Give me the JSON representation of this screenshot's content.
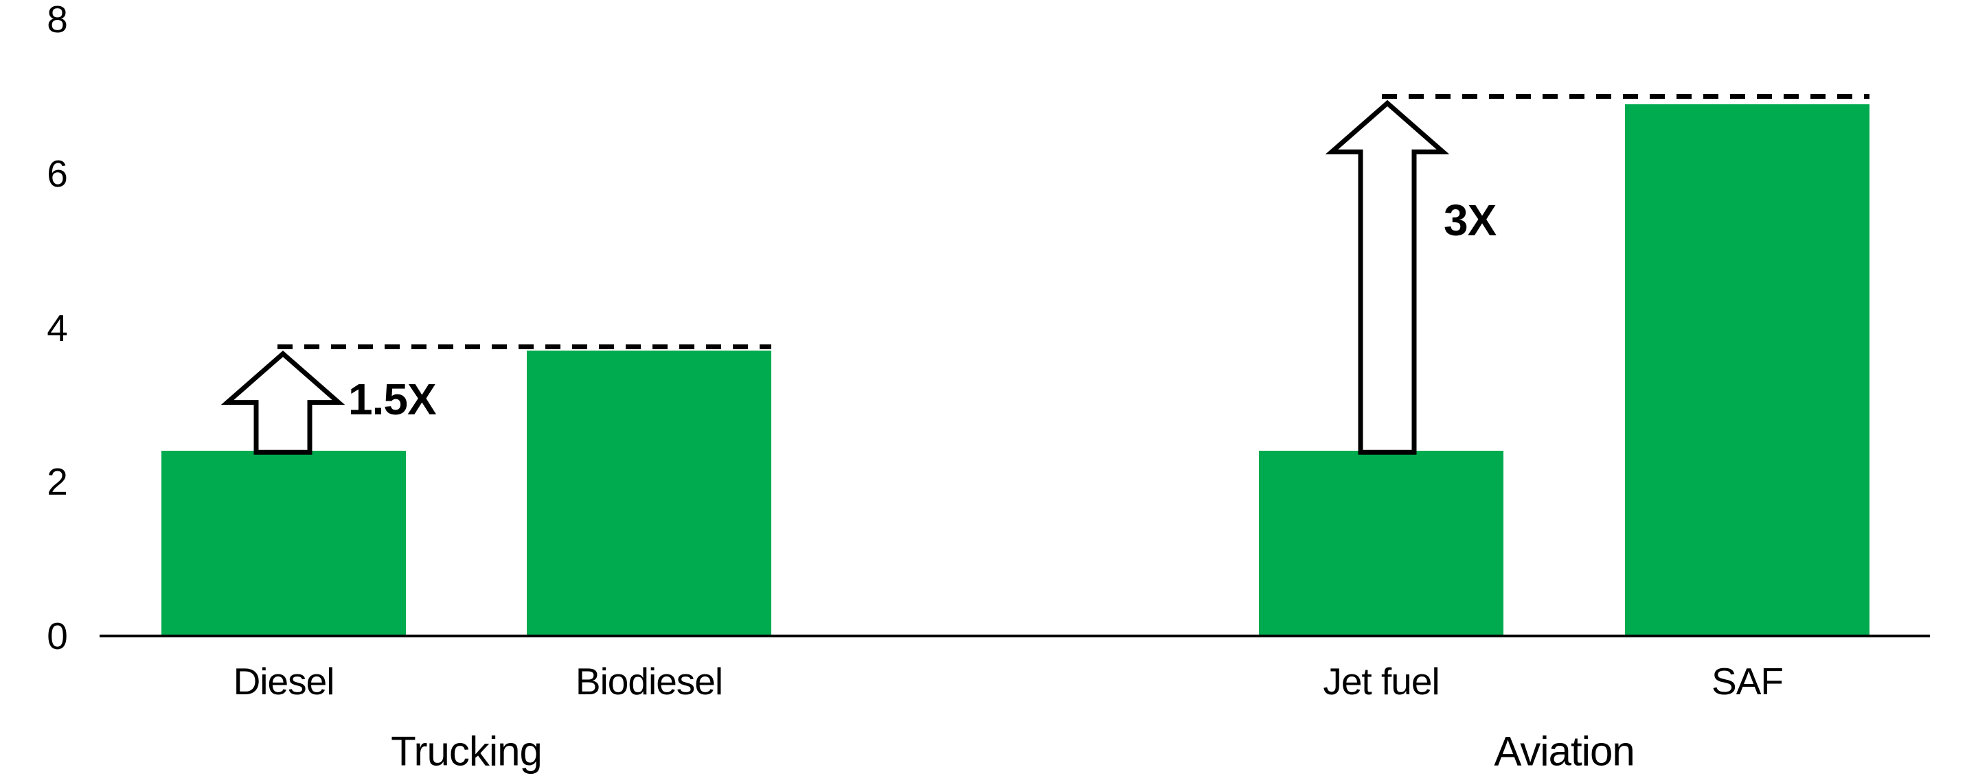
{
  "chart_data": {
    "type": "bar",
    "ylim": [
      0,
      8
    ],
    "yticks": [
      0,
      2,
      4,
      6,
      8
    ],
    "grid": false,
    "legend": false,
    "bar_color": "#00AB4F",
    "dash_color": "#000000",
    "axis_color": "#000000",
    "groups": [
      {
        "label": "Trucking",
        "bars": [
          {
            "label": "Diesel",
            "value": 2.4
          },
          {
            "label": "Biodiesel",
            "value": 3.7
          }
        ],
        "dashed_reference_value": 3.75,
        "annotation": "1.5X"
      },
      {
        "label": "Aviation",
        "bars": [
          {
            "label": "Jet fuel",
            "value": 2.4
          },
          {
            "label": "SAF",
            "value": 6.9
          }
        ],
        "dashed_reference_value": 7.0,
        "annotation": "3X"
      }
    ]
  }
}
